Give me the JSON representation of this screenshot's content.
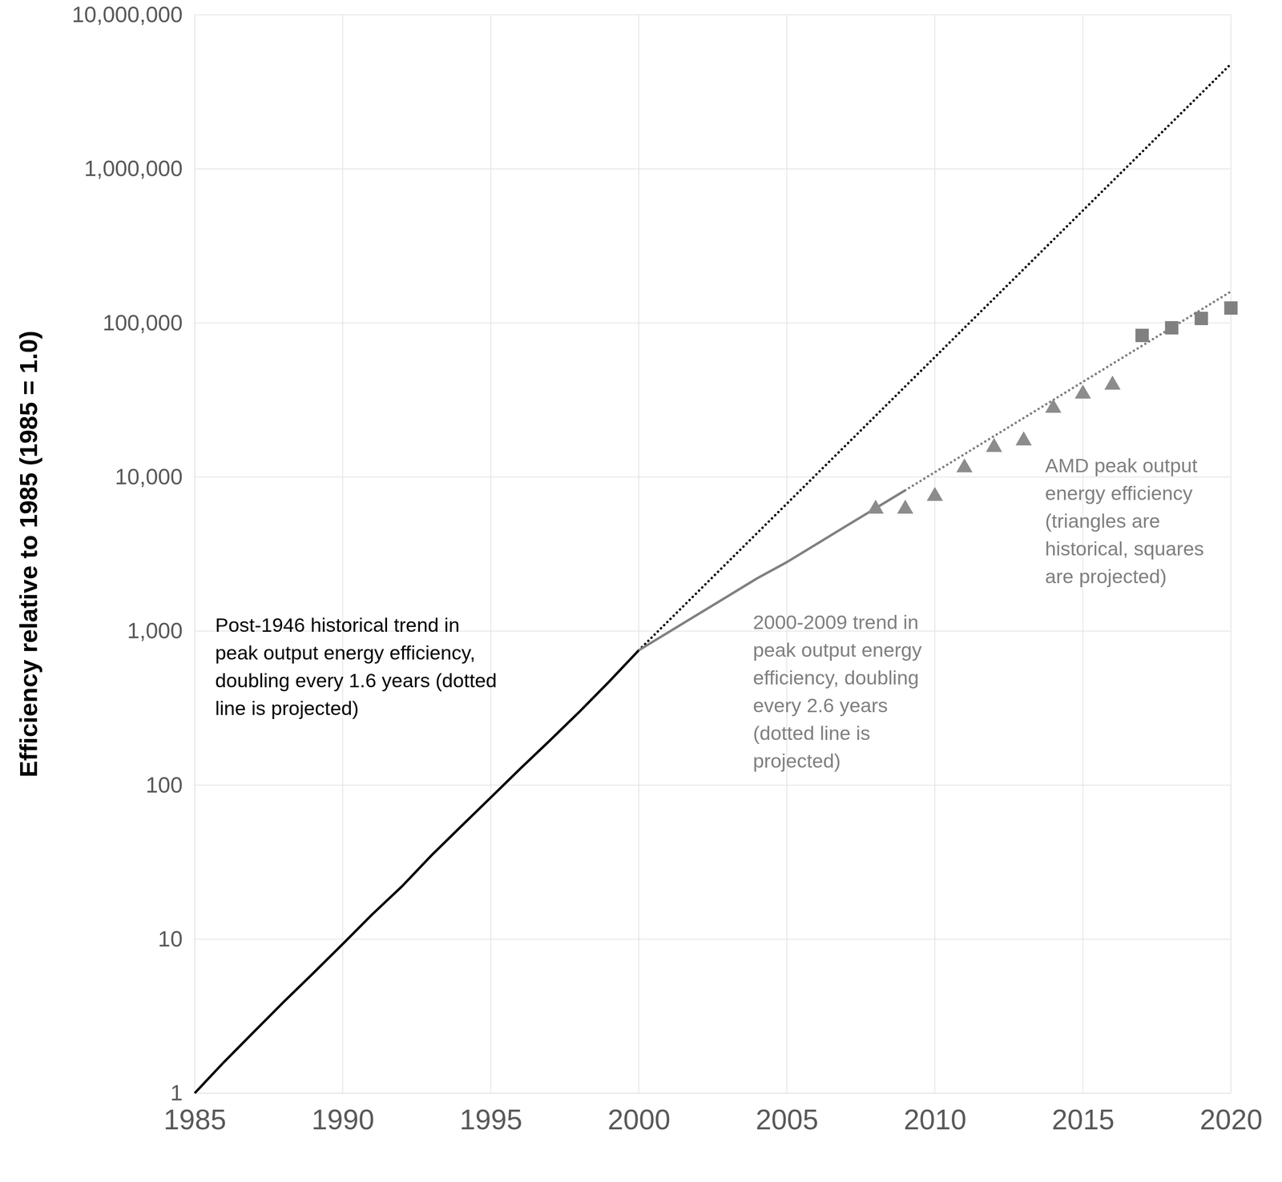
{
  "chart_data": {
    "type": "line",
    "y_label": "Efficiency relative to 1985 (1985 = 1.0)",
    "log": "y",
    "grid": true,
    "xlim": [
      1985,
      2020
    ],
    "xticks": [
      1985,
      1990,
      1995,
      2000,
      2005,
      2010,
      2015,
      2020
    ],
    "ylim": [
      1,
      10000000
    ],
    "yticks": [
      1,
      10,
      100,
      {
        "value": 1000,
        "label": "1,000"
      },
      {
        "value": 10000,
        "label": "10,000"
      },
      {
        "value": 100000,
        "label": "100,000"
      },
      {
        "value": 1000000,
        "label": "1,000,000"
      },
      {
        "value": 10000000,
        "label": "10,000,000"
      }
    ],
    "series": [
      {
        "type": "line",
        "line_style": "solid",
        "color": "#000000",
        "x": [
          1985,
          1986,
          1987,
          1988,
          1989,
          1990,
          1991,
          1992,
          1993,
          1994,
          1995,
          1996,
          1997,
          1998,
          1999,
          2000
        ],
        "values": [
          1,
          1.6,
          2.5,
          3.9,
          6,
          9.3,
          14.5,
          22,
          35,
          54,
          83,
          128,
          195,
          300,
          470,
          750
        ]
      },
      {
        "type": "line",
        "line_style": "dotted",
        "color": "#000000",
        "x": [
          2000,
          2010,
          2020
        ],
        "values": [
          750,
          60000,
          4800000
        ]
      },
      {
        "type": "line",
        "line_style": "solid",
        "color": "#808080",
        "x": [
          2000,
          2004,
          2005,
          2007,
          2009
        ],
        "values": [
          750,
          2200,
          2800,
          4800,
          8200
        ]
      },
      {
        "type": "line",
        "line_style": "dotted",
        "color": "#808080",
        "x": [
          2009,
          2020
        ],
        "values": [
          8200,
          160000
        ]
      },
      {
        "type": "scatter",
        "marker": "triangle",
        "color": "#8c8c8c",
        "x": [
          2008,
          2009,
          2010,
          2011,
          2012,
          2013,
          2014,
          2015,
          2016
        ],
        "values": [
          6200,
          6200,
          7500,
          11500,
          15600,
          17200,
          28000,
          34600,
          39600
        ]
      },
      {
        "type": "scatter",
        "marker": "square",
        "color": "#808080",
        "x": [
          2017,
          2018,
          2019,
          2020
        ],
        "values": [
          83000,
          93000,
          107000,
          125000
        ]
      }
    ],
    "annotations": [
      {
        "color": "#000000",
        "lines": [
          "Post-1946 historical trend in",
          "peak output energy efficiency,",
          "doubling every 1.6 years (dotted",
          "line is projected)"
        ]
      },
      {
        "color": "#808080",
        "lines": [
          "2000-2009 trend in",
          "peak output energy",
          "efficiency, doubling",
          "every 2.6 years",
          "(dotted line is",
          "projected)"
        ]
      },
      {
        "color": "#808080",
        "lines": [
          "AMD peak output",
          "energy efficiency",
          "(triangles are",
          "historical, squares",
          "are projected)"
        ]
      }
    ]
  }
}
